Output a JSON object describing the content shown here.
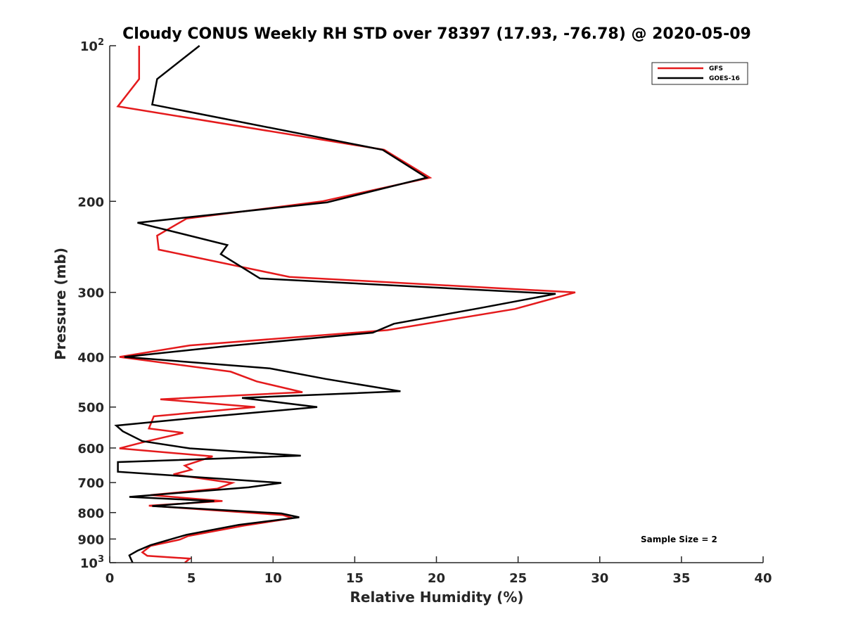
{
  "chart_data": {
    "type": "line",
    "title": "Cloudy CONUS Weekly RH STD over 78397 (17.93, -76.78) @ 2020-05-09",
    "xlabel": "Relative Humidity (%)",
    "ylabel": "Pressure (mb)",
    "xlim": [
      0,
      40
    ],
    "ylim": [
      100,
      1000
    ],
    "yscale": "log",
    "y_reversed": true,
    "grid": false,
    "legend_position": "top-right",
    "x_ticks": [
      "0",
      "5",
      "10",
      "15",
      "20",
      "25",
      "30",
      "35",
      "40"
    ],
    "y_ticks": [
      {
        "value": 100,
        "label": "10",
        "sup": "2"
      },
      {
        "value": 200,
        "label": "200",
        "sup": ""
      },
      {
        "value": 300,
        "label": "300",
        "sup": ""
      },
      {
        "value": 400,
        "label": "400",
        "sup": ""
      },
      {
        "value": 500,
        "label": "500",
        "sup": ""
      },
      {
        "value": 600,
        "label": "600",
        "sup": ""
      },
      {
        "value": 700,
        "label": "700",
        "sup": ""
      },
      {
        "value": 800,
        "label": "800",
        "sup": ""
      },
      {
        "value": 900,
        "label": "900",
        "sup": ""
      },
      {
        "value": 1000,
        "label": "10",
        "sup": "3"
      }
    ],
    "annotation": "Sample Size = 2",
    "series": [
      {
        "name": "GFS",
        "color": "#e41a1c",
        "points": [
          [
            1.8,
            100
          ],
          [
            1.8,
            116
          ],
          [
            0.5,
            131
          ],
          [
            16.8,
            159
          ],
          [
            19.6,
            180
          ],
          [
            13.0,
            200
          ],
          [
            4.7,
            216
          ],
          [
            2.9,
            233
          ],
          [
            3.0,
            248
          ],
          [
            11.0,
            280
          ],
          [
            28.5,
            300
          ],
          [
            24.8,
            323
          ],
          [
            17.0,
            355
          ],
          [
            4.9,
            380
          ],
          [
            0.6,
            400
          ],
          [
            7.4,
            427
          ],
          [
            9.0,
            446
          ],
          [
            11.8,
            468
          ],
          [
            3.1,
            483
          ],
          [
            8.9,
            500
          ],
          [
            2.7,
            521
          ],
          [
            2.4,
            550
          ],
          [
            4.5,
            561
          ],
          [
            2.2,
            583
          ],
          [
            0.6,
            601
          ],
          [
            6.3,
            623
          ],
          [
            4.6,
            649
          ],
          [
            5.0,
            661
          ],
          [
            3.9,
            675
          ],
          [
            7.5,
            701
          ],
          [
            6.6,
            719
          ],
          [
            2.5,
            740
          ],
          [
            6.9,
            760
          ],
          [
            2.4,
            776
          ],
          [
            10.6,
            809
          ],
          [
            11.2,
            820
          ],
          [
            8.2,
            848
          ],
          [
            4.8,
            888
          ],
          [
            4.3,
            902
          ],
          [
            2.5,
            928
          ],
          [
            2.0,
            955
          ],
          [
            2.3,
            970
          ],
          [
            4.9,
            982
          ],
          [
            4.6,
            1000
          ]
        ]
      },
      {
        "name": "GOES-16",
        "color": "#000000",
        "points": [
          [
            5.5,
            100
          ],
          [
            2.9,
            116
          ],
          [
            2.6,
            130
          ],
          [
            16.7,
            159
          ],
          [
            19.4,
            180
          ],
          [
            13.3,
            201
          ],
          [
            1.7,
            220
          ],
          [
            7.2,
            243
          ],
          [
            6.8,
            253
          ],
          [
            9.2,
            282
          ],
          [
            27.3,
            302
          ],
          [
            22.6,
            322
          ],
          [
            17.4,
            345
          ],
          [
            16.1,
            359
          ],
          [
            7.2,
            381
          ],
          [
            0.9,
            400
          ],
          [
            9.8,
            421
          ],
          [
            13.2,
            441
          ],
          [
            17.8,
            466
          ],
          [
            8.1,
            480
          ],
          [
            12.7,
            500
          ],
          [
            5.2,
            525
          ],
          [
            0.4,
            543
          ],
          [
            0.8,
            557
          ],
          [
            2.0,
            582
          ],
          [
            4.9,
            601
          ],
          [
            11.7,
            621
          ],
          [
            0.5,
            639
          ],
          [
            0.5,
            667
          ],
          [
            10.5,
            701
          ],
          [
            8.5,
            715
          ],
          [
            1.2,
            746
          ],
          [
            6.4,
            760
          ],
          [
            2.6,
            777
          ],
          [
            10.5,
            803
          ],
          [
            11.6,
            817
          ],
          [
            7.9,
            845
          ],
          [
            4.7,
            883
          ],
          [
            2.5,
            925
          ],
          [
            1.7,
            948
          ],
          [
            1.2,
            968
          ],
          [
            1.4,
            1000
          ]
        ]
      }
    ]
  }
}
